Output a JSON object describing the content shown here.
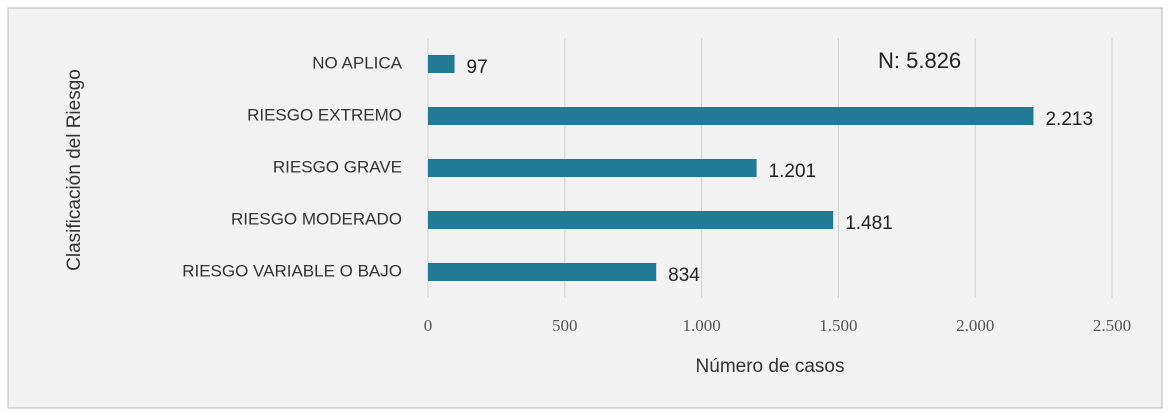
{
  "chart_data": {
    "type": "barh",
    "categories": [
      "NO APLICA",
      "RIESGO EXTREMO",
      "RIESGO GRAVE",
      "RIESGO MODERADO",
      "RIESGO VARIABLE O BAJO"
    ],
    "values": [
      97,
      2213,
      1201,
      1481,
      834
    ],
    "value_labels": [
      "97",
      "2.213",
      "1.201",
      "1.481",
      "834"
    ],
    "color": "#217a96",
    "xlabel": "Número de casos",
    "ylabel": "Clasificación del Riesgo",
    "annotation": "N: 5.826",
    "xlim": [
      0,
      2500
    ],
    "xticks": [
      0,
      500,
      {
        "value": 1000,
        "label": "1.000"
      },
      {
        "value": 1500,
        "label": "1.500"
      },
      {
        "value": 2000,
        "label": "2.000"
      },
      {
        "value": 2500,
        "label": "2.500"
      }
    ],
    "grid": true
  }
}
